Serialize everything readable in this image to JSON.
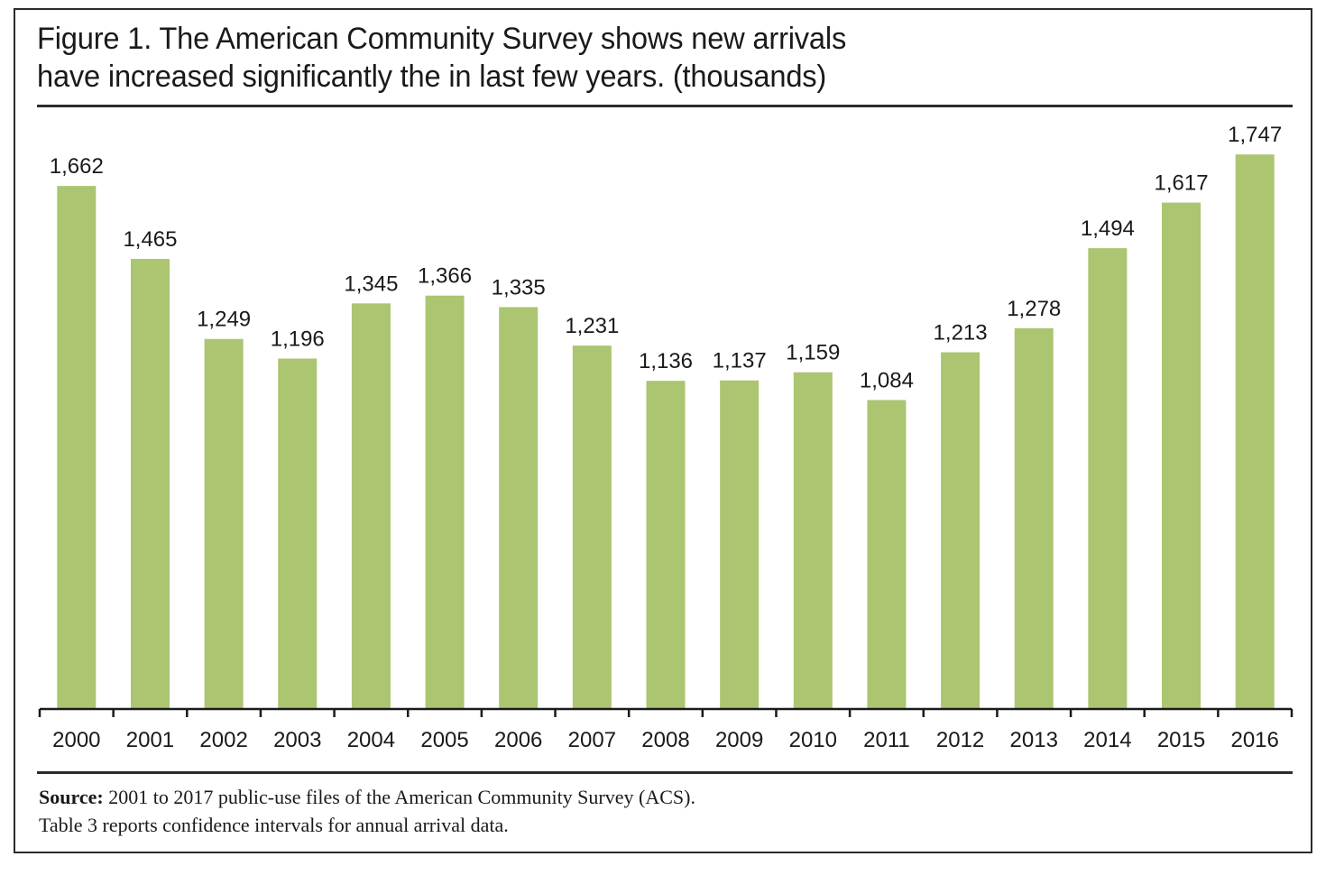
{
  "chart_data": {
    "type": "bar",
    "title": "Figure 1. The American Community Survey shows new arrivals have increased significantly the in last few years. (thousands)",
    "title_lines": [
      "Figure 1. The American Community Survey shows new arrivals",
      "have increased significantly the in last few years. (thousands)"
    ],
    "xlabel": "",
    "ylabel": "",
    "categories": [
      "2000",
      "2001",
      "2002",
      "2003",
      "2004",
      "2005",
      "2006",
      "2007",
      "2008",
      "2009",
      "2010",
      "2011",
      "2012",
      "2013",
      "2014",
      "2015",
      "2016"
    ],
    "values": [
      1662,
      1465,
      1249,
      1196,
      1345,
      1366,
      1335,
      1231,
      1136,
      1137,
      1159,
      1084,
      1213,
      1278,
      1494,
      1617,
      1747
    ],
    "value_labels": [
      "1,662",
      "1,465",
      "1,249",
      "1,196",
      "1,345",
      "1,366",
      "1,335",
      "1,231",
      "1,136",
      "1,137",
      "1,159",
      "1,084",
      "1,213",
      "1,278",
      "1,494",
      "1,617",
      "1,747"
    ],
    "units": "thousands",
    "ylim": [
      250,
      1750
    ],
    "grid": false,
    "legend": "none",
    "bar_color": "#abc571"
  },
  "footer": {
    "source_label": "Source:",
    "source_text": " 2001 to 2017 public-use files of the American Community  Survey (ACS).",
    "note": "Table 3 reports confidence intervals for annual arrival data."
  }
}
